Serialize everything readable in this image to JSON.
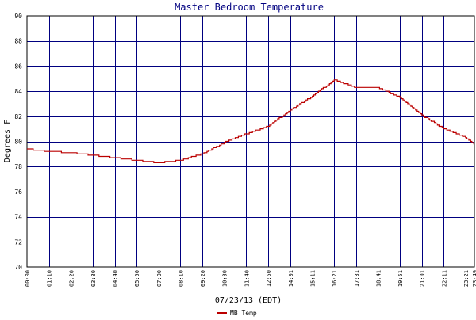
{
  "chart_data": {
    "type": "line",
    "title": "Master Bedroom Temperature",
    "xlabel": "07/23/13 (EDT)",
    "ylabel": "Degrees F",
    "ylim": [
      70,
      90
    ],
    "y_ticks": [
      70,
      72,
      74,
      76,
      78,
      80,
      82,
      84,
      86,
      88,
      90
    ],
    "x_ticks": [
      "00:00",
      "01:10",
      "02:20",
      "03:30",
      "04:40",
      "05:50",
      "07:00",
      "08:10",
      "09:20",
      "10:30",
      "11:40",
      "12:50",
      "14:01",
      "15:11",
      "16:21",
      "17:31",
      "18:41",
      "19:51",
      "21:01",
      "22:11",
      "23:21",
      "23:49"
    ],
    "x_tick_minutes": [
      0,
      70,
      140,
      210,
      280,
      350,
      420,
      490,
      560,
      630,
      700,
      770,
      841,
      911,
      981,
      1051,
      1121,
      1191,
      1261,
      1331,
      1401,
      1429
    ],
    "xlim": [
      0,
      1429
    ],
    "grid": true,
    "legend_position": "bottom-left",
    "colors": {
      "axes": "#000000",
      "grid": "#000080",
      "title": "#000080",
      "series": "#bb0000"
    },
    "series": [
      {
        "name": "MB Temp",
        "x": [
          0,
          70,
          140,
          210,
          280,
          350,
          420,
          490,
          560,
          630,
          700,
          770,
          841,
          911,
          981,
          1051,
          1121,
          1191,
          1261,
          1331,
          1401,
          1429
        ],
        "values": [
          79.4,
          79.2,
          79.1,
          78.9,
          78.7,
          78.5,
          78.3,
          78.5,
          79.0,
          79.9,
          80.6,
          81.2,
          82.5,
          83.6,
          84.9,
          84.3,
          84.3,
          83.5,
          82.1,
          81.0,
          80.3,
          79.8
        ]
      }
    ]
  }
}
